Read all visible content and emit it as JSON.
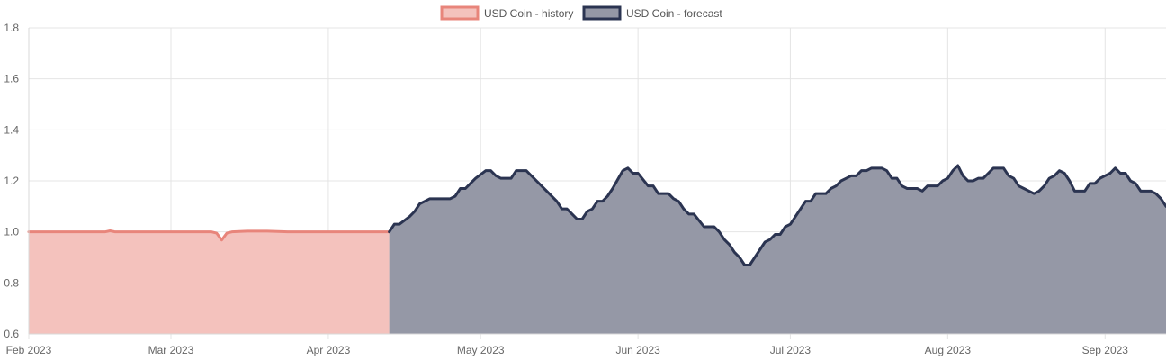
{
  "chart_data": {
    "type": "area",
    "title": "",
    "xlabel": "",
    "ylabel": "",
    "ylim": [
      0.6,
      1.8
    ],
    "xlim": [
      "2023-02-01",
      "2023-09-13"
    ],
    "y_ticks": [
      "0.6",
      "0.8",
      "1.0",
      "1.2",
      "1.4",
      "1.6",
      "1.8"
    ],
    "x_ticks": [
      {
        "label": "Feb 2023",
        "date": "2023-02-01"
      },
      {
        "label": "Mar 2023",
        "date": "2023-03-01"
      },
      {
        "label": "Apr 2023",
        "date": "2023-04-01"
      },
      {
        "label": "May 2023",
        "date": "2023-05-01"
      },
      {
        "label": "Jun 2023",
        "date": "2023-06-01"
      },
      {
        "label": "Jul 2023",
        "date": "2023-07-01"
      },
      {
        "label": "Aug 2023",
        "date": "2023-08-01"
      },
      {
        "label": "Sep 2023",
        "date": "2023-09-01"
      }
    ],
    "grid": true,
    "legend": "top-center",
    "series": [
      {
        "name": "USD Coin - history",
        "line_color": "#e8857b",
        "fill_color": "#f4c2bd",
        "points": [
          [
            "2023-02-01",
            1.0
          ],
          [
            "2023-02-04",
            1.0
          ],
          [
            "2023-02-08",
            1.0
          ],
          [
            "2023-02-12",
            1.0
          ],
          [
            "2023-02-16",
            1.0
          ],
          [
            "2023-02-17",
            1.004
          ],
          [
            "2023-02-18",
            1.0
          ],
          [
            "2023-02-22",
            1.0
          ],
          [
            "2023-02-26",
            1.0
          ],
          [
            "2023-03-02",
            1.0
          ],
          [
            "2023-03-06",
            1.0
          ],
          [
            "2023-03-09",
            1.0
          ],
          [
            "2023-03-10",
            0.995
          ],
          [
            "2023-03-11",
            0.968
          ],
          [
            "2023-03-12",
            0.995
          ],
          [
            "2023-03-13",
            1.0
          ],
          [
            "2023-03-16",
            1.003
          ],
          [
            "2023-03-20",
            1.003
          ],
          [
            "2023-03-24",
            1.0
          ],
          [
            "2023-03-28",
            1.0
          ],
          [
            "2023-04-01",
            1.0
          ],
          [
            "2023-04-05",
            1.0
          ],
          [
            "2023-04-09",
            1.0
          ],
          [
            "2023-04-13",
            1.0
          ]
        ]
      },
      {
        "name": "USD Coin - forecast",
        "line_color": "#2b3451",
        "fill_color": "#9598a6",
        "points": [
          [
            "2023-04-13",
            1.0
          ],
          [
            "2023-04-14",
            1.03
          ],
          [
            "2023-04-15",
            1.03
          ],
          [
            "2023-04-17",
            1.06
          ],
          [
            "2023-04-18",
            1.08
          ],
          [
            "2023-04-19",
            1.11
          ],
          [
            "2023-04-20",
            1.12
          ],
          [
            "2023-04-21",
            1.13
          ],
          [
            "2023-04-25",
            1.13
          ],
          [
            "2023-04-26",
            1.14
          ],
          [
            "2023-04-27",
            1.17
          ],
          [
            "2023-04-28",
            1.17
          ],
          [
            "2023-04-29",
            1.19
          ],
          [
            "2023-04-30",
            1.21
          ],
          [
            "2023-05-02",
            1.24
          ],
          [
            "2023-05-03",
            1.24
          ],
          [
            "2023-05-04",
            1.22
          ],
          [
            "2023-05-05",
            1.21
          ],
          [
            "2023-05-07",
            1.21
          ],
          [
            "2023-05-08",
            1.24
          ],
          [
            "2023-05-10",
            1.24
          ],
          [
            "2023-05-12",
            1.2
          ],
          [
            "2023-05-14",
            1.16
          ],
          [
            "2023-05-16",
            1.12
          ],
          [
            "2023-05-17",
            1.09
          ],
          [
            "2023-05-18",
            1.09
          ],
          [
            "2023-05-20",
            1.05
          ],
          [
            "2023-05-21",
            1.05
          ],
          [
            "2023-05-22",
            1.08
          ],
          [
            "2023-05-23",
            1.09
          ],
          [
            "2023-05-24",
            1.12
          ],
          [
            "2023-05-25",
            1.12
          ],
          [
            "2023-05-26",
            1.14
          ],
          [
            "2023-05-27",
            1.17
          ],
          [
            "2023-05-29",
            1.24
          ],
          [
            "2023-05-30",
            1.25
          ],
          [
            "2023-05-31",
            1.23
          ],
          [
            "2023-06-01",
            1.23
          ],
          [
            "2023-06-03",
            1.18
          ],
          [
            "2023-06-04",
            1.18
          ],
          [
            "2023-06-05",
            1.15
          ],
          [
            "2023-06-07",
            1.15
          ],
          [
            "2023-06-08",
            1.13
          ],
          [
            "2023-06-09",
            1.12
          ],
          [
            "2023-06-10",
            1.09
          ],
          [
            "2023-06-11",
            1.07
          ],
          [
            "2023-06-12",
            1.07
          ],
          [
            "2023-06-14",
            1.02
          ],
          [
            "2023-06-16",
            1.02
          ],
          [
            "2023-06-17",
            1.0
          ],
          [
            "2023-06-18",
            0.97
          ],
          [
            "2023-06-19",
            0.95
          ],
          [
            "2023-06-20",
            0.92
          ],
          [
            "2023-06-21",
            0.9
          ],
          [
            "2023-06-22",
            0.87
          ],
          [
            "2023-06-23",
            0.87
          ],
          [
            "2023-06-24",
            0.9
          ],
          [
            "2023-06-25",
            0.93
          ],
          [
            "2023-06-26",
            0.96
          ],
          [
            "2023-06-27",
            0.97
          ],
          [
            "2023-06-28",
            0.99
          ],
          [
            "2023-06-29",
            0.99
          ],
          [
            "2023-06-30",
            1.02
          ],
          [
            "2023-07-01",
            1.03
          ],
          [
            "2023-07-02",
            1.06
          ],
          [
            "2023-07-03",
            1.09
          ],
          [
            "2023-07-04",
            1.12
          ],
          [
            "2023-07-05",
            1.12
          ],
          [
            "2023-07-06",
            1.15
          ],
          [
            "2023-07-08",
            1.15
          ],
          [
            "2023-07-09",
            1.17
          ],
          [
            "2023-07-10",
            1.18
          ],
          [
            "2023-07-11",
            1.2
          ],
          [
            "2023-07-12",
            1.21
          ],
          [
            "2023-07-13",
            1.22
          ],
          [
            "2023-07-14",
            1.22
          ],
          [
            "2023-07-15",
            1.24
          ],
          [
            "2023-07-16",
            1.24
          ],
          [
            "2023-07-17",
            1.25
          ],
          [
            "2023-07-19",
            1.25
          ],
          [
            "2023-07-20",
            1.24
          ],
          [
            "2023-07-21",
            1.21
          ],
          [
            "2023-07-22",
            1.21
          ],
          [
            "2023-07-23",
            1.18
          ],
          [
            "2023-07-24",
            1.17
          ],
          [
            "2023-07-26",
            1.17
          ],
          [
            "2023-07-27",
            1.16
          ],
          [
            "2023-07-28",
            1.18
          ],
          [
            "2023-07-30",
            1.18
          ],
          [
            "2023-07-31",
            1.2
          ],
          [
            "2023-08-01",
            1.21
          ],
          [
            "2023-08-02",
            1.24
          ],
          [
            "2023-08-03",
            1.26
          ],
          [
            "2023-08-04",
            1.22
          ],
          [
            "2023-08-05",
            1.2
          ],
          [
            "2023-08-06",
            1.2
          ],
          [
            "2023-08-07",
            1.21
          ],
          [
            "2023-08-08",
            1.21
          ],
          [
            "2023-08-09",
            1.23
          ],
          [
            "2023-08-10",
            1.25
          ],
          [
            "2023-08-12",
            1.25
          ],
          [
            "2023-08-13",
            1.22
          ],
          [
            "2023-08-14",
            1.21
          ],
          [
            "2023-08-15",
            1.18
          ],
          [
            "2023-08-16",
            1.17
          ],
          [
            "2023-08-17",
            1.16
          ],
          [
            "2023-08-18",
            1.15
          ],
          [
            "2023-08-19",
            1.16
          ],
          [
            "2023-08-20",
            1.18
          ],
          [
            "2023-08-21",
            1.21
          ],
          [
            "2023-08-22",
            1.22
          ],
          [
            "2023-08-23",
            1.24
          ],
          [
            "2023-08-24",
            1.23
          ],
          [
            "2023-08-25",
            1.2
          ],
          [
            "2023-08-26",
            1.16
          ],
          [
            "2023-08-28",
            1.16
          ],
          [
            "2023-08-29",
            1.19
          ],
          [
            "2023-08-30",
            1.19
          ],
          [
            "2023-08-31",
            1.21
          ],
          [
            "2023-09-01",
            1.22
          ],
          [
            "2023-09-02",
            1.23
          ],
          [
            "2023-09-03",
            1.25
          ],
          [
            "2023-09-04",
            1.23
          ],
          [
            "2023-09-05",
            1.23
          ],
          [
            "2023-09-06",
            1.2
          ],
          [
            "2023-09-07",
            1.19
          ],
          [
            "2023-09-08",
            1.16
          ],
          [
            "2023-09-10",
            1.16
          ],
          [
            "2023-09-11",
            1.15
          ],
          [
            "2023-09-12",
            1.13
          ],
          [
            "2023-09-13",
            1.1
          ]
        ]
      }
    ]
  }
}
